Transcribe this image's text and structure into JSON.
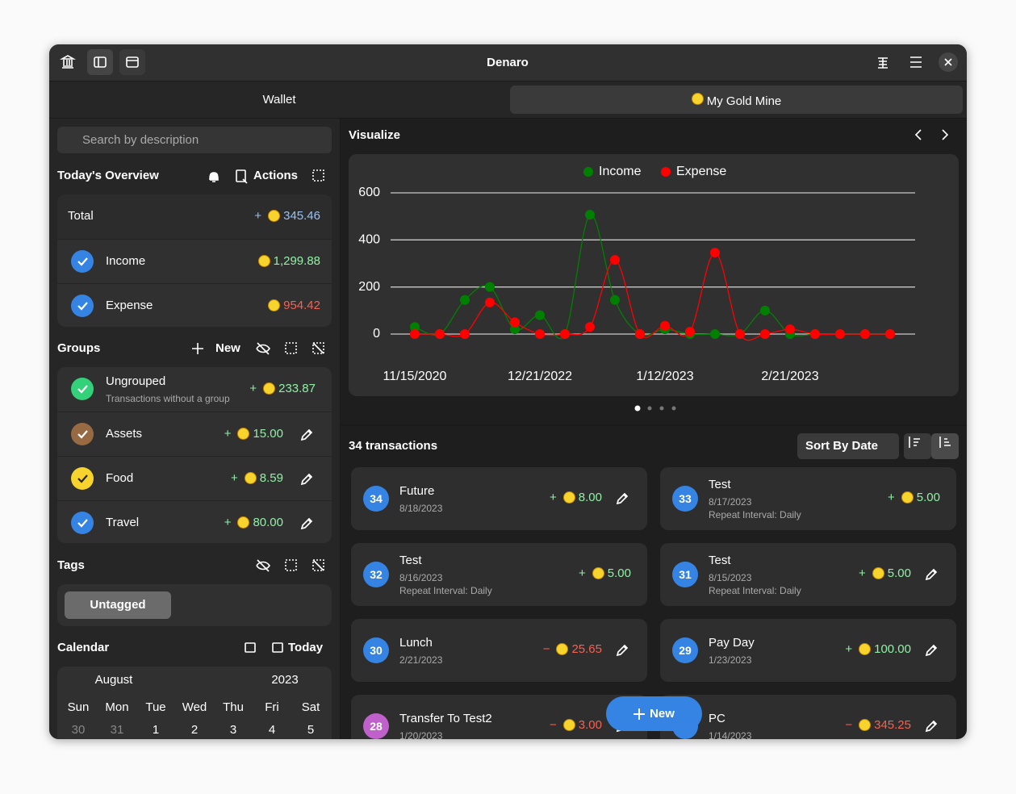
{
  "header": {
    "title": "Denaro"
  },
  "tabs": [
    {
      "label": "Wallet"
    },
    {
      "label": "My Gold Mine"
    }
  ],
  "search": {
    "placeholder": "Search by description"
  },
  "overview": {
    "title": "Today's Overview",
    "actions": "Actions",
    "rows": [
      {
        "label": "Total",
        "sign": "+",
        "amount": "345.46",
        "color": "#99c1f1"
      },
      {
        "label": "Income",
        "amount": "1,299.88",
        "color": "#8ff0a4"
      },
      {
        "label": "Expense",
        "amount": "954.42",
        "color": "#f66151"
      }
    ]
  },
  "groups": {
    "title": "Groups",
    "new": "New",
    "items": [
      {
        "name": "Ungrouped",
        "description": "Transactions without a group",
        "sign": "+",
        "amount": "233.87",
        "color": "#33d17a"
      },
      {
        "name": "Assets",
        "sign": "+",
        "amount": "15.00",
        "color": "#986a44",
        "editable": true
      },
      {
        "name": "Food",
        "sign": "+",
        "amount": "8.59",
        "color": "#f6d32d",
        "editable": true
      },
      {
        "name": "Travel",
        "sign": "+",
        "amount": "80.00",
        "color": "#3584e4",
        "editable": true
      }
    ]
  },
  "tags": {
    "title": "Tags",
    "items": [
      "Untagged"
    ]
  },
  "calendar": {
    "title": "Calendar",
    "today": "Today",
    "month": "August",
    "year": "2023",
    "weekdays": [
      "Sun",
      "Mon",
      "Tue",
      "Wed",
      "Thu",
      "Fri",
      "Sat"
    ],
    "days": [
      {
        "label": "30",
        "other_month": true
      },
      {
        "label": "31",
        "other_month": true
      },
      {
        "label": "1"
      },
      {
        "label": "2"
      },
      {
        "label": "3"
      },
      {
        "label": "4"
      },
      {
        "label": "5"
      }
    ]
  },
  "visualize": {
    "title": "Visualize"
  },
  "chart_data": {
    "type": "line",
    "categories": [
      "11/15/2020",
      null,
      null,
      null,
      null,
      "12/21/2022",
      null,
      null,
      null,
      null,
      "1/12/2023",
      null,
      null,
      null,
      null,
      "2/21/2023",
      null,
      null,
      null,
      null
    ],
    "series": [
      {
        "name": "Income",
        "color": "#008000",
        "values": [
          30,
          0,
          145,
          200,
          20,
          80,
          0,
          507,
          145,
          0,
          20,
          0,
          0,
          0,
          100,
          0,
          0,
          0,
          0,
          0
        ]
      },
      {
        "name": "Expense",
        "color": "#ff0000",
        "values": [
          0,
          0,
          0,
          134,
          50,
          0,
          0,
          30,
          315,
          0,
          35,
          10,
          346,
          0,
          0,
          20,
          0,
          0,
          0,
          0
        ]
      }
    ],
    "ylim": [
      0,
      600
    ],
    "yticks": [
      0,
      200,
      400,
      600
    ],
    "grid": true,
    "legend": "top"
  },
  "transactions": {
    "count_label": "34 transactions",
    "sort": "Sort By Date",
    "new": "New",
    "items": [
      {
        "id": "34",
        "name": "Future",
        "date": "8/18/2023",
        "sign": "+",
        "amount": "8.00",
        "color": "#3584e4",
        "editable": true
      },
      {
        "id": "33",
        "name": "Test",
        "date": "8/17/2023",
        "repeat": "Repeat Interval: Daily",
        "sign": "+",
        "amount": "5.00",
        "color": "#3584e4"
      },
      {
        "id": "32",
        "name": "Test",
        "date": "8/16/2023",
        "repeat": "Repeat Interval: Daily",
        "sign": "+",
        "amount": "5.00",
        "color": "#3584e4"
      },
      {
        "id": "31",
        "name": "Test",
        "date": "8/15/2023",
        "repeat": "Repeat Interval: Daily",
        "sign": "+",
        "amount": "5.00",
        "color": "#3584e4",
        "editable": true
      },
      {
        "id": "30",
        "name": "Lunch",
        "date": "2/21/2023",
        "sign": "−",
        "amount": "25.65",
        "color": "#3584e4",
        "editable": true,
        "expense": true
      },
      {
        "id": "29",
        "name": "Pay Day",
        "date": "1/23/2023",
        "sign": "+",
        "amount": "100.00",
        "color": "#3584e4",
        "editable": true
      },
      {
        "id": "28",
        "name": "Transfer To Test2",
        "date": "1/20/2023",
        "sign": "−",
        "amount": "3.00",
        "color": "#c061cb",
        "editable": true,
        "expense": true
      },
      {
        "name": "PC",
        "date": "1/14/2023",
        "sign": "−",
        "amount": "345.25",
        "color": "#3584e4",
        "editable": true,
        "expense": true
      }
    ]
  }
}
